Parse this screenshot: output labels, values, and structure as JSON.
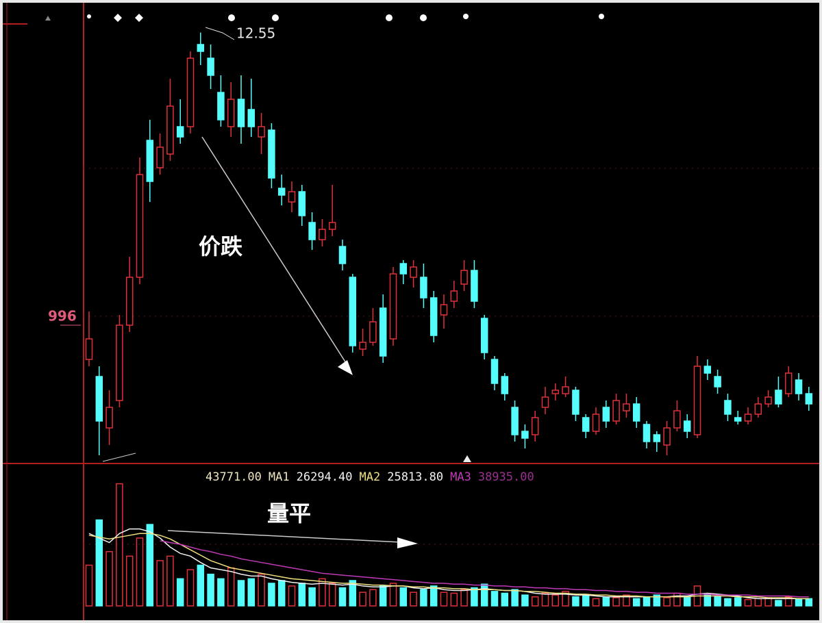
{
  "chart_data": {
    "type": "candlestick",
    "up_color": "#e0303a",
    "down_color": "#54fcfc",
    "ylim": [
      0,
      13
    ],
    "high_label": "12.55",
    "price_label": "996",
    "annotation_price": "价跌",
    "annotation_volume": "量平",
    "ohlc": [
      [
        3.0,
        4.4,
        2.8,
        3.6
      ],
      [
        2.5,
        2.8,
        0.2,
        1.2
      ],
      [
        1.0,
        2.1,
        0.5,
        1.6
      ],
      [
        1.8,
        4.3,
        1.6,
        4.0
      ],
      [
        4.0,
        6.0,
        3.8,
        5.4
      ],
      [
        5.4,
        8.9,
        5.2,
        8.4
      ],
      [
        9.4,
        10.0,
        7.6,
        8.2
      ],
      [
        8.6,
        9.6,
        8.4,
        9.2
      ],
      [
        9.0,
        11.2,
        8.8,
        10.4
      ],
      [
        9.8,
        10.6,
        9.3,
        9.5
      ],
      [
        9.8,
        12.0,
        9.6,
        11.8
      ],
      [
        12.2,
        12.55,
        11.6,
        12.0
      ],
      [
        11.8,
        12.2,
        10.9,
        11.3
      ],
      [
        10.8,
        11.3,
        9.8,
        10.0
      ],
      [
        9.8,
        11.1,
        9.5,
        10.6
      ],
      [
        10.6,
        11.3,
        9.3,
        9.8
      ],
      [
        10.3,
        11.2,
        9.5,
        9.8
      ],
      [
        9.5,
        10.2,
        9.0,
        9.8
      ],
      [
        9.7,
        9.9,
        8.0,
        8.3
      ],
      [
        8.0,
        8.4,
        7.5,
        7.8
      ],
      [
        7.6,
        8.2,
        7.3,
        7.9
      ],
      [
        7.9,
        8.1,
        6.9,
        7.2
      ],
      [
        7.0,
        7.3,
        6.2,
        6.5
      ],
      [
        6.5,
        7.1,
        6.3,
        6.8
      ],
      [
        6.8,
        8.1,
        6.6,
        7.0
      ],
      [
        6.3,
        6.5,
        5.6,
        5.8
      ],
      [
        5.4,
        5.5,
        3.2,
        3.4
      ],
      [
        3.3,
        3.9,
        3.1,
        3.5
      ],
      [
        3.5,
        4.5,
        3.4,
        4.1
      ],
      [
        4.5,
        4.9,
        2.9,
        3.1
      ],
      [
        3.6,
        5.7,
        3.4,
        5.5
      ],
      [
        5.8,
        5.9,
        5.2,
        5.5
      ],
      [
        5.4,
        5.9,
        5.1,
        5.7
      ],
      [
        5.4,
        5.8,
        4.5,
        4.8
      ],
      [
        4.8,
        5.0,
        3.5,
        3.7
      ],
      [
        4.3,
        4.9,
        3.9,
        4.6
      ],
      [
        4.7,
        5.3,
        4.5,
        5.0
      ],
      [
        5.2,
        5.9,
        5.0,
        5.6
      ],
      [
        5.6,
        5.9,
        4.5,
        4.7
      ],
      [
        4.2,
        4.3,
        3.0,
        3.2
      ],
      [
        3.0,
        3.1,
        2.1,
        2.3
      ],
      [
        2.5,
        2.6,
        1.8,
        2.0
      ],
      [
        1.6,
        1.8,
        0.6,
        0.8
      ],
      [
        0.9,
        1.1,
        0.4,
        0.7
      ],
      [
        0.8,
        1.5,
        0.6,
        1.3
      ],
      [
        1.6,
        2.2,
        1.4,
        1.9
      ],
      [
        2.0,
        2.3,
        1.8,
        2.1
      ],
      [
        2.0,
        2.5,
        1.9,
        2.2
      ],
      [
        2.1,
        2.2,
        1.2,
        1.4
      ],
      [
        1.3,
        1.4,
        0.7,
        0.9
      ],
      [
        0.9,
        1.6,
        0.8,
        1.4
      ],
      [
        1.6,
        1.8,
        1.0,
        1.2
      ],
      [
        1.2,
        2.0,
        1.1,
        1.8
      ],
      [
        1.5,
        2.0,
        1.3,
        1.7
      ],
      [
        1.7,
        1.9,
        1.0,
        1.2
      ],
      [
        1.1,
        1.2,
        0.4,
        0.6
      ],
      [
        0.8,
        0.9,
        0.3,
        0.6
      ],
      [
        0.5,
        1.2,
        0.2,
        1.0
      ],
      [
        1.0,
        1.8,
        0.9,
        1.5
      ],
      [
        1.2,
        1.4,
        0.7,
        0.9
      ],
      [
        0.8,
        3.1,
        0.7,
        2.8
      ],
      [
        2.8,
        3.0,
        2.4,
        2.6
      ],
      [
        2.5,
        2.7,
        2.0,
        2.2
      ],
      [
        1.8,
        2.0,
        1.2,
        1.4
      ],
      [
        1.3,
        1.5,
        1.1,
        1.2
      ],
      [
        1.2,
        1.6,
        1.1,
        1.4
      ],
      [
        1.4,
        1.9,
        1.3,
        1.7
      ],
      [
        1.7,
        2.1,
        1.6,
        1.9
      ],
      [
        2.1,
        2.5,
        1.6,
        1.7
      ],
      [
        2.0,
        2.8,
        1.9,
        2.6
      ],
      [
        2.4,
        2.6,
        1.8,
        2.0
      ],
      [
        2.0,
        2.2,
        1.5,
        1.7
      ]
    ],
    "volume": {
      "ylim": [
        0,
        140000
      ],
      "values": [
        45000,
        95000,
        60000,
        135000,
        55000,
        75000,
        90000,
        50000,
        55000,
        30000,
        40000,
        45000,
        35000,
        30000,
        42000,
        28000,
        30000,
        35000,
        25000,
        28000,
        22000,
        25000,
        20000,
        30000,
        25000,
        20000,
        28000,
        15000,
        18000,
        22000,
        25000,
        20000,
        15000,
        18000,
        22000,
        15000,
        14000,
        18000,
        20000,
        24000,
        16000,
        14000,
        18000,
        12000,
        10000,
        14000,
        12000,
        16000,
        10000,
        12000,
        8000,
        10000,
        9000,
        12000,
        8000,
        10000,
        12000,
        9000,
        14000,
        10000,
        22000,
        12000,
        10000,
        8000,
        9000,
        7000,
        8000,
        9000,
        6000,
        10000,
        7000,
        8000
      ],
      "series": [
        {
          "name": "MA1",
          "color": "#f2f2f2",
          "values": [
            80000,
            75000,
            70000,
            80000,
            85000,
            85000,
            82000,
            75000,
            65000,
            58000,
            55000,
            48000,
            42000,
            40000,
            38000,
            35000,
            33000,
            33000,
            30000,
            28000,
            26000,
            25000,
            24000,
            25000,
            24000,
            23000,
            24000,
            22000,
            21000,
            21000,
            22000,
            22000,
            20000,
            19000,
            20000,
            18000,
            17000,
            17000,
            18000,
            19000,
            18000,
            17000,
            17000,
            16000,
            14000,
            13000,
            13000,
            13000,
            12000,
            12000,
            11000,
            10000,
            10000,
            10000,
            10000,
            10000,
            10000,
            10000,
            11000,
            11000,
            13000,
            14000,
            13000,
            12000,
            11000,
            9000,
            8000,
            8000,
            8000,
            8000,
            8000,
            8000
          ]
        },
        {
          "name": "MA2",
          "color": "#f0e080",
          "values": [
            78000,
            76000,
            74000,
            76000,
            78000,
            80000,
            80000,
            78000,
            74000,
            68000,
            62000,
            56000,
            50000,
            46000,
            42000,
            40000,
            38000,
            36000,
            34000,
            32000,
            30000,
            29000,
            28000,
            27000,
            26000,
            25000,
            25000,
            24000,
            23000,
            23000,
            22000,
            22000,
            21000,
            21000,
            20000,
            20000,
            19000,
            19000,
            18000,
            18000,
            18000,
            17000,
            17000,
            16000,
            16000,
            15000,
            14000,
            14000,
            13000,
            13000,
            12000,
            12000,
            11000,
            11000,
            11000,
            10000,
            10000,
            10000,
            10000,
            10000,
            11000,
            11000,
            11000,
            11000,
            10000,
            10000,
            10000,
            9000,
            9000,
            9000,
            8000,
            8000
          ]
        },
        {
          "name": "MA3",
          "color": "#c03ab8",
          "values": [
            null,
            null,
            null,
            null,
            null,
            null,
            null,
            72000,
            70000,
            68000,
            65000,
            62000,
            60000,
            57000,
            55000,
            52000,
            50000,
            48000,
            46000,
            44000,
            42000,
            40000,
            38000,
            36000,
            35000,
            34000,
            33000,
            32000,
            31000,
            30000,
            29000,
            28000,
            27000,
            26000,
            25000,
            25000,
            24000,
            24000,
            23000,
            23000,
            22000,
            22000,
            21000,
            21000,
            20000,
            20000,
            19000,
            19000,
            18000,
            18000,
            17000,
            17000,
            16000,
            16000,
            15000,
            15000,
            14000,
            14000,
            14000,
            13000,
            13000,
            13000,
            12000,
            12000,
            12000,
            12000,
            11000,
            11000,
            11000,
            11000,
            10000,
            10000
          ]
        }
      ],
      "readout": [
        {
          "label": "43771.00",
          "color": "#f0e6c0"
        },
        {
          "label": "MA1",
          "color": "#f0e6c0"
        },
        {
          "label": "26294.40",
          "color": "#f2f2f2"
        },
        {
          "label": "MA2",
          "color": "#f0e080"
        },
        {
          "label": "25813.80",
          "color": "#f2f2f2"
        },
        {
          "label": "MA3",
          "color": "#c03ab8"
        },
        {
          "label": "38935.00",
          "color": "#9a3090"
        }
      ]
    }
  }
}
